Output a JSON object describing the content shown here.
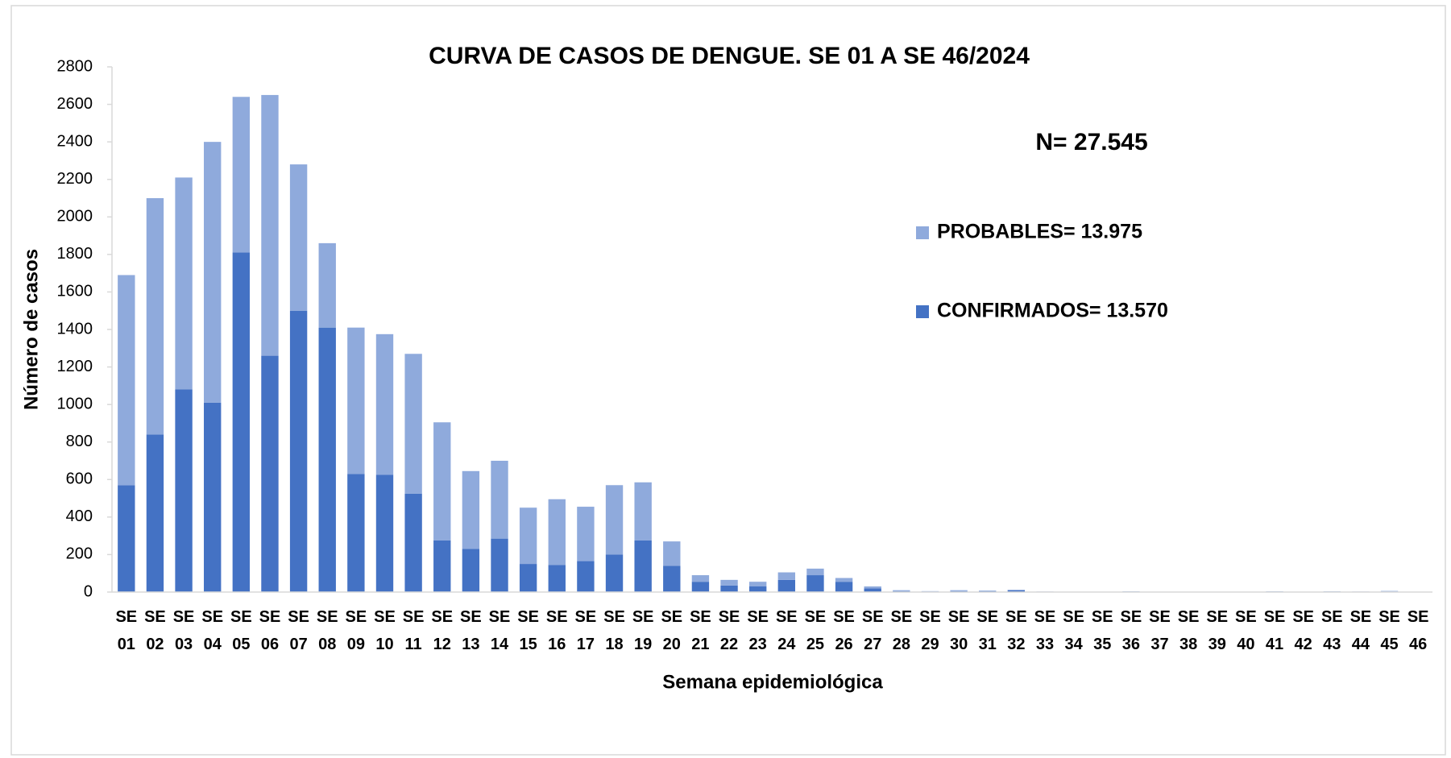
{
  "chart_data": {
    "type": "bar",
    "stacked": true,
    "title": "CURVA DE CASOS DE DENGUE. SE 01 A SE 46/2024",
    "annotation": "N= 27.545",
    "x_label": "Semana epidemiológica",
    "y_label": "Número de casos",
    "categories": [
      "SE 01",
      "SE 02",
      "SE 03",
      "SE 04",
      "SE 05",
      "SE 06",
      "SE 07",
      "SE 08",
      "SE 09",
      "SE 10",
      "SE 11",
      "SE 12",
      "SE 13",
      "SE 14",
      "SE 15",
      "SE 16",
      "SE 17",
      "SE 18",
      "SE 19",
      "SE 20",
      "SE 21",
      "SE 22",
      "SE 23",
      "SE 24",
      "SE 25",
      "SE 26",
      "SE 27",
      "SE 28",
      "SE 29",
      "SE 30",
      "SE 31",
      "SE 32",
      "SE 33",
      "SE 34",
      "SE 35",
      "SE 36",
      "SE 37",
      "SE 38",
      "SE 39",
      "SE 40",
      "SE 41",
      "SE 42",
      "SE 43",
      "SE 44",
      "SE 45",
      "SE 46"
    ],
    "series": [
      {
        "name": "CONFIRMADOS= 13.570",
        "color": "#4472c4",
        "values": [
          570,
          840,
          1080,
          1010,
          1810,
          1260,
          1500,
          1410,
          630,
          625,
          525,
          275,
          230,
          285,
          150,
          145,
          165,
          200,
          275,
          140,
          55,
          35,
          30,
          65,
          90,
          55,
          20,
          5,
          3,
          5,
          5,
          10,
          2,
          1,
          1,
          2,
          1,
          1,
          1,
          1,
          2,
          1,
          2,
          1,
          3,
          1
        ]
      },
      {
        "name": "PROBABLES= 13.975",
        "color": "#8faadc",
        "values": [
          1120,
          1260,
          1130,
          1390,
          830,
          1390,
          780,
          450,
          780,
          750,
          745,
          630,
          415,
          415,
          300,
          350,
          290,
          370,
          310,
          130,
          35,
          30,
          25,
          40,
          35,
          20,
          10,
          5,
          2,
          5,
          3,
          2,
          1,
          1,
          1,
          2,
          1,
          0,
          1,
          1,
          2,
          1,
          2,
          2,
          3,
          1
        ]
      }
    ],
    "ylim": [
      0,
      2800
    ],
    "yticks": [
      0,
      200,
      400,
      600,
      800,
      1000,
      1200,
      1400,
      1600,
      1800,
      2000,
      2200,
      2400,
      2600,
      2800
    ],
    "grid": false
  }
}
